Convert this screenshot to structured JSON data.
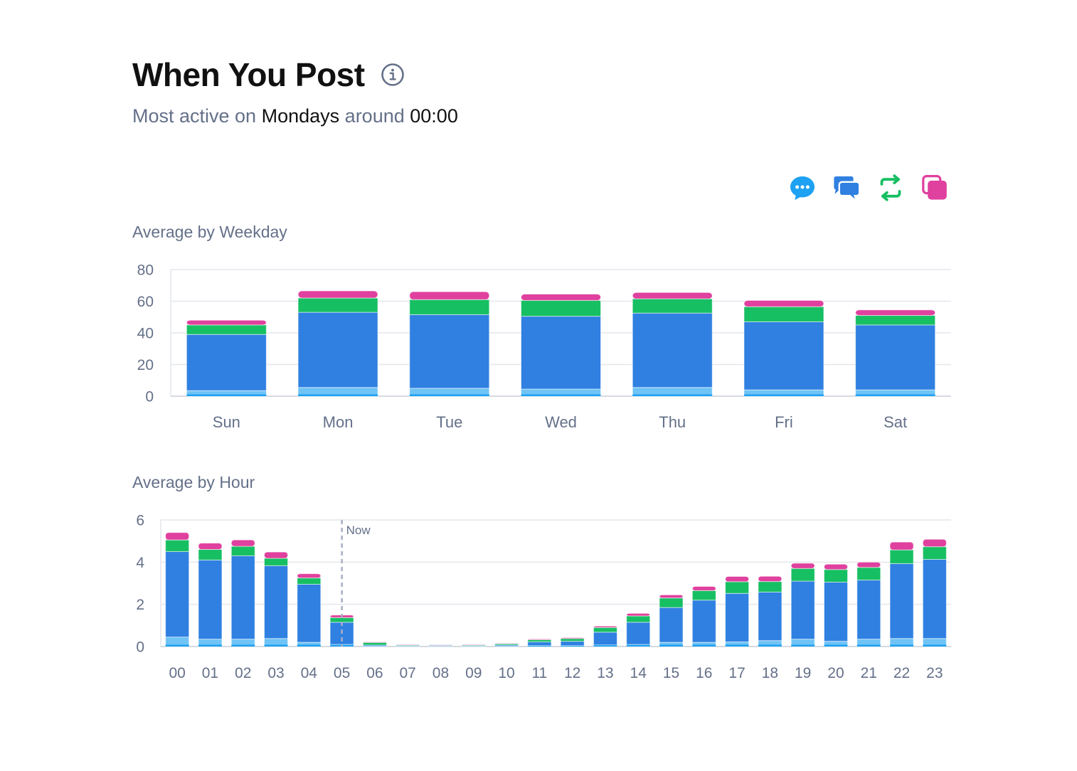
{
  "header": {
    "title": "When You Post",
    "subtitle_prefix": "Most active on",
    "subtitle_day": "Mondays",
    "subtitle_mid": "around",
    "subtitle_time": "00:00",
    "info_icon": "info-icon"
  },
  "legend": [
    {
      "icon": "reply-icon",
      "color": "#1DA1F2"
    },
    {
      "icon": "conversation-icon",
      "color": "#2F80E1"
    },
    {
      "icon": "retweet-icon",
      "color": "#17BF63"
    },
    {
      "icon": "copy-icon",
      "color": "#E0409E"
    }
  ],
  "colors": {
    "replies": "#6FC3F5",
    "replies_edge": "#1DA1F2",
    "posts": "#2F80E1",
    "reposts": "#17BF63",
    "quotes": "#E0409E",
    "grid": "#E2E6EC",
    "axis_text": "#647089",
    "now_line": "#A9AEC6"
  },
  "sections": {
    "weekday_label": "Average by Weekday",
    "hour_label": "Average by Hour"
  },
  "chart_data": [
    {
      "type": "bar",
      "stacked": true,
      "title": "Average by Weekday",
      "categories": [
        "Sun",
        "Mon",
        "Tue",
        "Wed",
        "Thu",
        "Fri",
        "Sat"
      ],
      "yticks": [
        0,
        20,
        40,
        60,
        80
      ],
      "ylim": [
        0,
        80
      ],
      "grid": true,
      "series": [
        {
          "key": "replies",
          "values": [
            3.5,
            5.5,
            5,
            4.5,
            5.5,
            4,
            4
          ]
        },
        {
          "key": "posts",
          "values": [
            35.5,
            47.5,
            46.5,
            46,
            47,
            43,
            41
          ]
        },
        {
          "key": "reposts",
          "values": [
            6,
            9,
            9.5,
            10,
            9,
            9.5,
            6
          ]
        },
        {
          "key": "quotes",
          "values": [
            3,
            4.5,
            5,
            4,
            4,
            4,
            3.5
          ]
        }
      ]
    },
    {
      "type": "bar",
      "stacked": true,
      "title": "Average by Hour",
      "categories": [
        "00",
        "01",
        "02",
        "03",
        "04",
        "05",
        "06",
        "07",
        "08",
        "09",
        "10",
        "11",
        "12",
        "13",
        "14",
        "15",
        "16",
        "17",
        "18",
        "19",
        "20",
        "21",
        "22",
        "23"
      ],
      "yticks": [
        0,
        2,
        4,
        6
      ],
      "ylim": [
        0,
        6
      ],
      "grid": true,
      "marker": {
        "label": "Now",
        "category": "05"
      },
      "series": [
        {
          "key": "replies",
          "values": [
            0.45,
            0.35,
            0.35,
            0.38,
            0.2,
            0.1,
            0.02,
            0.01,
            0.01,
            0.01,
            0.02,
            0.05,
            0.05,
            0.08,
            0.1,
            0.2,
            0.2,
            0.22,
            0.28,
            0.35,
            0.25,
            0.35,
            0.38,
            0.38
          ]
        },
        {
          "key": "posts",
          "values": [
            4.05,
            3.75,
            3.95,
            3.45,
            2.75,
            1.05,
            0.05,
            0.03,
            0.02,
            0.03,
            0.05,
            0.17,
            0.2,
            0.6,
            1.05,
            1.65,
            2.0,
            2.3,
            2.3,
            2.75,
            2.8,
            2.8,
            3.55,
            3.75
          ]
        },
        {
          "key": "reposts",
          "values": [
            0.55,
            0.5,
            0.45,
            0.35,
            0.3,
            0.22,
            0.12,
            0.04,
            0.03,
            0.04,
            0.06,
            0.1,
            0.13,
            0.22,
            0.3,
            0.45,
            0.45,
            0.55,
            0.5,
            0.6,
            0.6,
            0.6,
            0.65,
            0.6
          ]
        },
        {
          "key": "quotes",
          "values": [
            0.35,
            0.3,
            0.3,
            0.3,
            0.2,
            0.12,
            0.03,
            0.01,
            0.01,
            0.01,
            0.02,
            0.04,
            0.04,
            0.07,
            0.12,
            0.15,
            0.2,
            0.25,
            0.25,
            0.25,
            0.25,
            0.25,
            0.37,
            0.35
          ]
        }
      ]
    }
  ]
}
